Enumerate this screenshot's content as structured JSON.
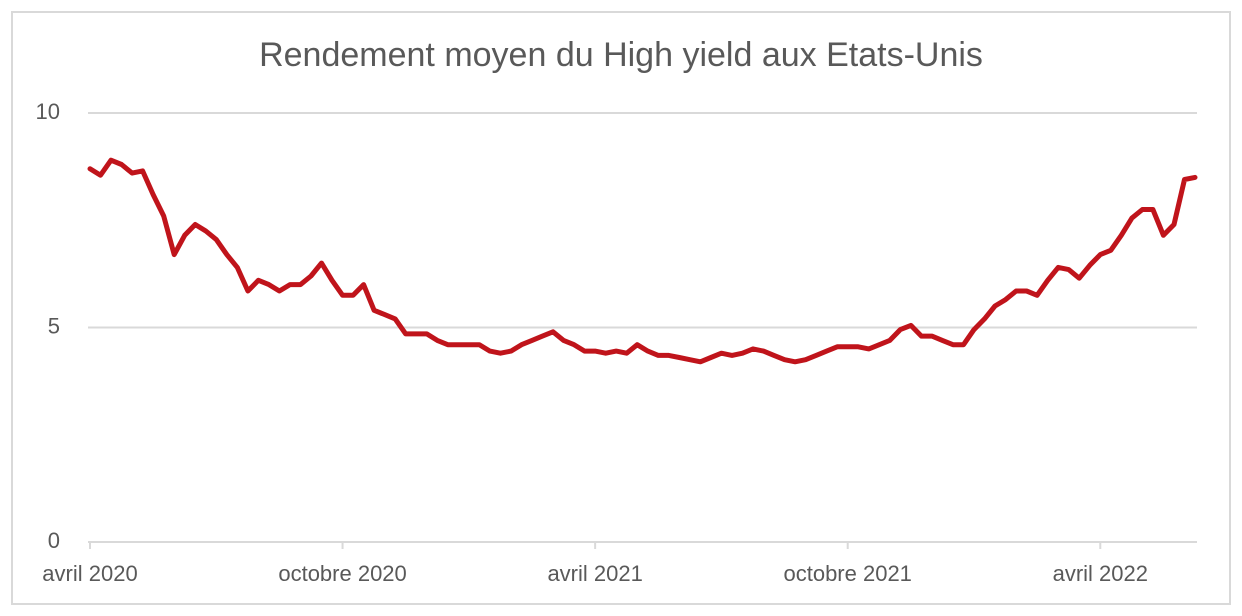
{
  "chart_data": {
    "type": "line",
    "title": "Rendement moyen du High yield aux Etats-Unis",
    "categories": [
      "avril 2020",
      null,
      null,
      null,
      null,
      null,
      null,
      null,
      null,
      null,
      null,
      null,
      null,
      null,
      null,
      null,
      null,
      null,
      null,
      null,
      null,
      null,
      null,
      null,
      "octobre 2020",
      null,
      null,
      null,
      null,
      null,
      null,
      null,
      null,
      null,
      null,
      null,
      null,
      null,
      null,
      null,
      null,
      null,
      null,
      null,
      null,
      null,
      null,
      null,
      "avril 2021",
      null,
      null,
      null,
      null,
      null,
      null,
      null,
      null,
      null,
      null,
      null,
      null,
      null,
      null,
      null,
      null,
      null,
      null,
      null,
      null,
      null,
      null,
      null,
      "octobre 2021",
      null,
      null,
      null,
      null,
      null,
      null,
      null,
      null,
      null,
      null,
      null,
      null,
      null,
      null,
      null,
      null,
      null,
      null,
      null,
      null,
      null,
      null,
      null,
      "avril 2022",
      null,
      null,
      null,
      null,
      null,
      null,
      null,
      null,
      null
    ],
    "values": [
      8.7,
      8.55,
      8.9,
      8.8,
      8.6,
      8.65,
      8.1,
      7.6,
      6.7,
      7.15,
      7.4,
      7.25,
      7.05,
      6.7,
      6.4,
      5.85,
      6.1,
      6.0,
      5.85,
      6.0,
      6.0,
      6.2,
      6.5,
      6.1,
      5.75,
      5.75,
      6.0,
      5.4,
      5.3,
      5.2,
      4.85,
      4.85,
      4.85,
      4.7,
      4.6,
      4.6,
      4.6,
      4.6,
      4.45,
      4.4,
      4.45,
      4.6,
      4.7,
      4.8,
      4.9,
      4.7,
      4.6,
      4.45,
      4.45,
      4.4,
      4.45,
      4.4,
      4.6,
      4.45,
      4.35,
      4.35,
      4.3,
      4.25,
      4.2,
      4.3,
      4.4,
      4.35,
      4.4,
      4.5,
      4.45,
      4.35,
      4.25,
      4.2,
      4.25,
      4.35,
      4.45,
      4.55,
      4.55,
      4.55,
      4.5,
      4.6,
      4.7,
      4.95,
      5.05,
      4.8,
      4.8,
      4.7,
      4.6,
      4.6,
      4.95,
      5.2,
      5.5,
      5.65,
      5.85,
      5.85,
      5.75,
      6.1,
      6.4,
      6.35,
      6.15,
      6.45,
      6.7,
      6.8,
      7.15,
      7.55,
      7.75,
      7.75,
      7.15,
      7.4,
      8.45,
      8.5
    ],
    "color": "#c0141b",
    "ylim": [
      0,
      10
    ],
    "yticks": [
      0,
      5,
      10
    ],
    "grid": true
  }
}
